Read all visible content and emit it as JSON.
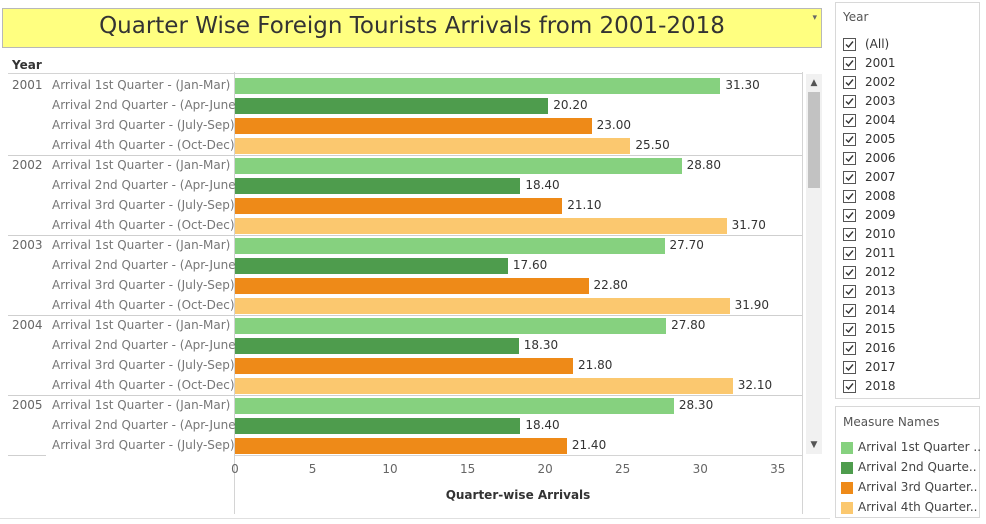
{
  "title": "Quarter Wise Foreign Tourists Arrivals  from 2001-2018",
  "title_menu_icon": "▾",
  "row_header": "Year",
  "chart_data": {
    "type": "bar",
    "orientation": "horizontal",
    "xlabel": "Quarter-wise Arrivals",
    "xlim": [
      0,
      36.5
    ],
    "xticks": [
      "0",
      "5",
      "10",
      "15",
      "20",
      "25",
      "30",
      "35"
    ],
    "series_names": [
      "Arrival 1st Quarter - (Jan-Mar)",
      "Arrival 2nd Quarter - (Apr-June)",
      "Arrival 3rd Quarter - (July-Sep)",
      "Arrival 4th Quarter - (Oct-Dec)"
    ],
    "colors": [
      "#86d17f",
      "#4e9c4d",
      "#ee8a18",
      "#fbc86f"
    ],
    "groups": [
      {
        "year": "2001",
        "rows": [
          {
            "label": "Arrival 1st Quarter - (Jan-Mar)",
            "value": 31.3,
            "text": "31.30",
            "series": 0
          },
          {
            "label": "Arrival 2nd Quarter - (Apr-June)",
            "value": 20.2,
            "text": "20.20",
            "series": 1
          },
          {
            "label": "Arrival 3rd Quarter - (July-Sep)",
            "value": 23.0,
            "text": "23.00",
            "series": 2
          },
          {
            "label": "Arrival 4th Quarter - (Oct-Dec)",
            "value": 25.5,
            "text": "25.50",
            "series": 3
          }
        ]
      },
      {
        "year": "2002",
        "rows": [
          {
            "label": "Arrival 1st Quarter - (Jan-Mar)",
            "value": 28.8,
            "text": "28.80",
            "series": 0
          },
          {
            "label": "Arrival 2nd Quarter - (Apr-June)",
            "value": 18.4,
            "text": "18.40",
            "series": 1
          },
          {
            "label": "Arrival 3rd Quarter - (July-Sep)",
            "value": 21.1,
            "text": "21.10",
            "series": 2
          },
          {
            "label": "Arrival 4th Quarter - (Oct-Dec)",
            "value": 31.7,
            "text": "31.70",
            "series": 3
          }
        ]
      },
      {
        "year": "2003",
        "rows": [
          {
            "label": "Arrival 1st Quarter - (Jan-Mar)",
            "value": 27.7,
            "text": "27.70",
            "series": 0
          },
          {
            "label": "Arrival 2nd Quarter - (Apr-June)",
            "value": 17.6,
            "text": "17.60",
            "series": 1
          },
          {
            "label": "Arrival 3rd Quarter - (July-Sep)",
            "value": 22.8,
            "text": "22.80",
            "series": 2
          },
          {
            "label": "Arrival 4th Quarter - (Oct-Dec)",
            "value": 31.9,
            "text": "31.90",
            "series": 3
          }
        ]
      },
      {
        "year": "2004",
        "rows": [
          {
            "label": "Arrival 1st Quarter - (Jan-Mar)",
            "value": 27.8,
            "text": "27.80",
            "series": 0
          },
          {
            "label": "Arrival 2nd Quarter - (Apr-June)",
            "value": 18.3,
            "text": "18.30",
            "series": 1
          },
          {
            "label": "Arrival 3rd Quarter - (July-Sep)",
            "value": 21.8,
            "text": "21.80",
            "series": 2
          },
          {
            "label": "Arrival 4th Quarter - (Oct-Dec)",
            "value": 32.1,
            "text": "32.10",
            "series": 3
          }
        ]
      },
      {
        "year": "2005",
        "rows": [
          {
            "label": "Arrival 1st Quarter - (Jan-Mar)",
            "value": 28.3,
            "text": "28.30",
            "series": 0
          },
          {
            "label": "Arrival 2nd Quarter - (Apr-June)",
            "value": 18.4,
            "text": "18.40",
            "series": 1
          },
          {
            "label": "Arrival 3rd Quarter - (July-Sep)",
            "value": 21.4,
            "text": "21.40",
            "series": 2
          }
        ]
      }
    ]
  },
  "scrollbar": {
    "up_icon": "▲",
    "down_icon": "▼"
  },
  "year_filter": {
    "title": "Year",
    "items": [
      {
        "label": "(All)",
        "checked": true
      },
      {
        "label": "2001",
        "checked": true
      },
      {
        "label": "2002",
        "checked": true
      },
      {
        "label": "2003",
        "checked": true
      },
      {
        "label": "2004",
        "checked": true
      },
      {
        "label": "2005",
        "checked": true
      },
      {
        "label": "2006",
        "checked": true
      },
      {
        "label": "2007",
        "checked": true
      },
      {
        "label": "2008",
        "checked": true
      },
      {
        "label": "2009",
        "checked": true
      },
      {
        "label": "2010",
        "checked": true
      },
      {
        "label": "2011",
        "checked": true
      },
      {
        "label": "2012",
        "checked": true
      },
      {
        "label": "2013",
        "checked": true
      },
      {
        "label": "2014",
        "checked": true
      },
      {
        "label": "2015",
        "checked": true
      },
      {
        "label": "2016",
        "checked": true
      },
      {
        "label": "2017",
        "checked": true
      },
      {
        "label": "2018",
        "checked": true
      }
    ]
  },
  "legend": {
    "title": "Measure Names",
    "items": [
      {
        "label": "Arrival 1st Quarter ..",
        "color": "#86d17f"
      },
      {
        "label": "Arrival 2nd Quarte..",
        "color": "#4e9c4d"
      },
      {
        "label": "Arrival 3rd Quarter..",
        "color": "#ee8a18"
      },
      {
        "label": "Arrival 4th Quarter..",
        "color": "#fbc86f"
      }
    ]
  }
}
